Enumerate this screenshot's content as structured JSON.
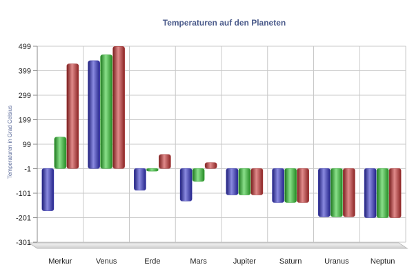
{
  "chart_data": {
    "type": "bar",
    "title": "Temperaturen auf den Planeten",
    "xlabel": "",
    "ylabel": "Temperaturen in Grad Celsius",
    "ylim": [
      -301,
      499
    ],
    "yticks": [
      -301,
      -201,
      -101,
      -1,
      99,
      199,
      299,
      399,
      499
    ],
    "grid": true,
    "categories": [
      "Merkur",
      "Venus",
      "Erde",
      "Mars",
      "Jupiter",
      "Saturn",
      "Uranus",
      "Neptun"
    ],
    "series": [
      {
        "color": "#3a3aa8",
        "values": [
          -173,
          440,
          -89,
          -133,
          -108,
          -139,
          -197,
          -201
        ]
      },
      {
        "color": "#3aa63a",
        "values": [
          128,
          464,
          -11,
          -53,
          -108,
          -139,
          -197,
          -201
        ]
      },
      {
        "color": "#a63a3a",
        "values": [
          427,
          498,
          57,
          24,
          -108,
          -139,
          -197,
          -201
        ]
      }
    ]
  }
}
